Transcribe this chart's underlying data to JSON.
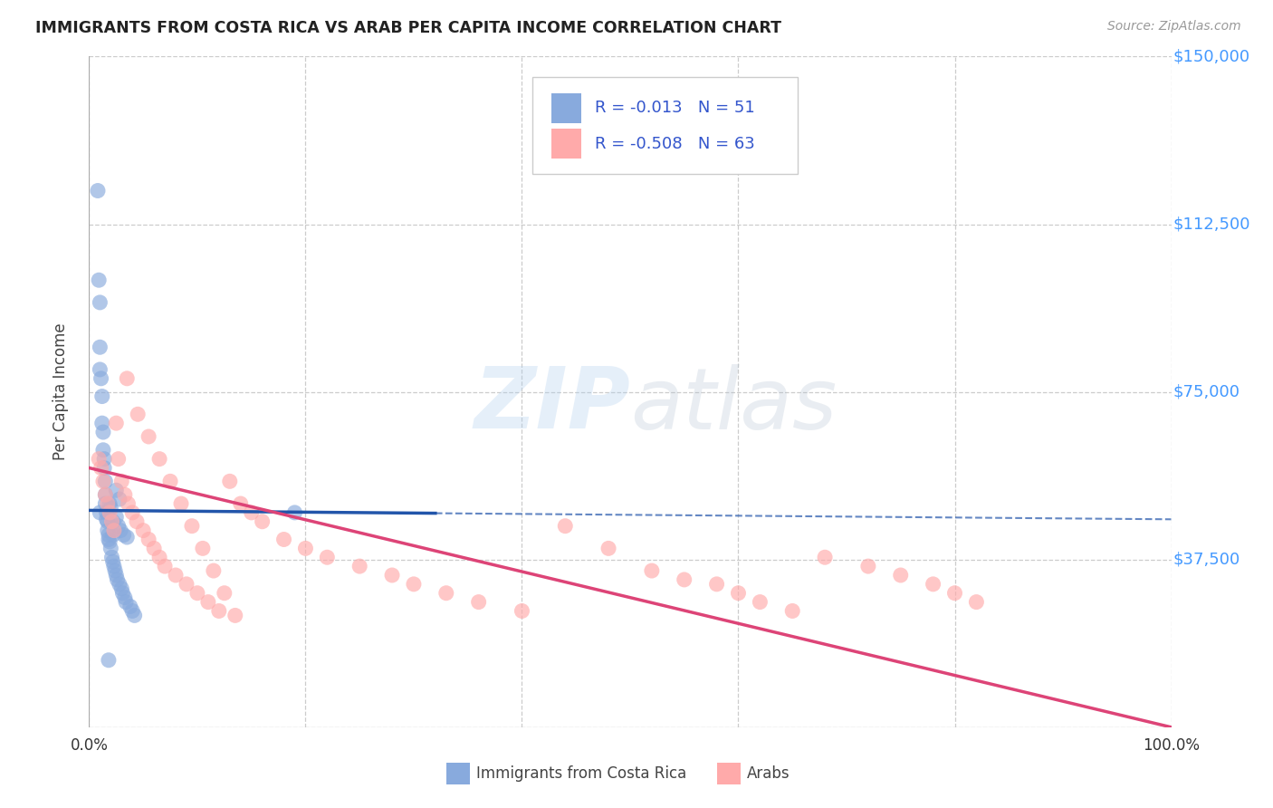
{
  "title": "IMMIGRANTS FROM COSTA RICA VS ARAB PER CAPITA INCOME CORRELATION CHART",
  "source_text": "Source: ZipAtlas.com",
  "ylabel": "Per Capita Income",
  "xlim": [
    0,
    1.0
  ],
  "ylim": [
    0,
    150000
  ],
  "yticks": [
    0,
    37500,
    75000,
    112500,
    150000
  ],
  "ytick_labels_right": [
    "$37,500",
    "$75,000",
    "$112,500",
    "$150,000"
  ],
  "ytick_vals_right": [
    37500,
    75000,
    112500,
    150000
  ],
  "background_color": "#ffffff",
  "grid_color": "#cccccc",
  "blue_color": "#88aadd",
  "pink_color": "#ffaaaa",
  "blue_line_color": "#2255aa",
  "pink_line_color": "#dd4477",
  "legend_text_color": "#3355cc",
  "legend_r1": "-0.013",
  "legend_n1": "51",
  "legend_r2": "-0.508",
  "legend_n2": "63",
  "watermark": "ZIPatlas",
  "figsize": [
    14.06,
    8.92
  ],
  "dpi": 100,
  "blue_x": [
    0.008,
    0.009,
    0.01,
    0.01,
    0.01,
    0.01,
    0.011,
    0.012,
    0.012,
    0.013,
    0.013,
    0.014,
    0.014,
    0.015,
    0.015,
    0.015,
    0.016,
    0.016,
    0.017,
    0.017,
    0.018,
    0.018,
    0.019,
    0.019,
    0.02,
    0.02,
    0.021,
    0.022,
    0.022,
    0.023,
    0.024,
    0.025,
    0.025,
    0.026,
    0.027,
    0.028,
    0.029,
    0.03,
    0.031,
    0.032,
    0.033,
    0.034,
    0.035,
    0.038,
    0.04,
    0.042,
    0.025,
    0.028,
    0.018,
    0.022,
    0.19
  ],
  "blue_y": [
    120000,
    100000,
    95000,
    85000,
    80000,
    48000,
    78000,
    74000,
    68000,
    66000,
    62000,
    60000,
    58000,
    55000,
    52000,
    50000,
    48000,
    46500,
    46000,
    44000,
    43000,
    42000,
    41500,
    50000,
    40000,
    49000,
    38000,
    37000,
    46000,
    36000,
    35000,
    34000,
    47000,
    33000,
    45000,
    32000,
    44000,
    31000,
    30000,
    43000,
    29000,
    28000,
    42500,
    27000,
    26000,
    25000,
    53000,
    51000,
    15000,
    43000,
    48000
  ],
  "pink_x": [
    0.009,
    0.011,
    0.013,
    0.015,
    0.017,
    0.019,
    0.021,
    0.023,
    0.025,
    0.027,
    0.03,
    0.033,
    0.036,
    0.04,
    0.044,
    0.05,
    0.055,
    0.06,
    0.065,
    0.07,
    0.08,
    0.09,
    0.1,
    0.11,
    0.12,
    0.13,
    0.14,
    0.15,
    0.16,
    0.18,
    0.2,
    0.22,
    0.25,
    0.28,
    0.3,
    0.33,
    0.36,
    0.4,
    0.44,
    0.48,
    0.52,
    0.55,
    0.58,
    0.6,
    0.62,
    0.65,
    0.68,
    0.72,
    0.75,
    0.78,
    0.8,
    0.82,
    0.035,
    0.045,
    0.055,
    0.065,
    0.075,
    0.085,
    0.095,
    0.105,
    0.115,
    0.125,
    0.135
  ],
  "pink_y": [
    60000,
    58000,
    55000,
    52000,
    50000,
    48000,
    46000,
    44000,
    68000,
    60000,
    55000,
    52000,
    50000,
    48000,
    46000,
    44000,
    42000,
    40000,
    38000,
    36000,
    34000,
    32000,
    30000,
    28000,
    26000,
    55000,
    50000,
    48000,
    46000,
    42000,
    40000,
    38000,
    36000,
    34000,
    32000,
    30000,
    28000,
    26000,
    45000,
    40000,
    35000,
    33000,
    32000,
    30000,
    28000,
    26000,
    38000,
    36000,
    34000,
    32000,
    30000,
    28000,
    78000,
    70000,
    65000,
    60000,
    55000,
    50000,
    45000,
    40000,
    35000,
    30000,
    25000
  ]
}
